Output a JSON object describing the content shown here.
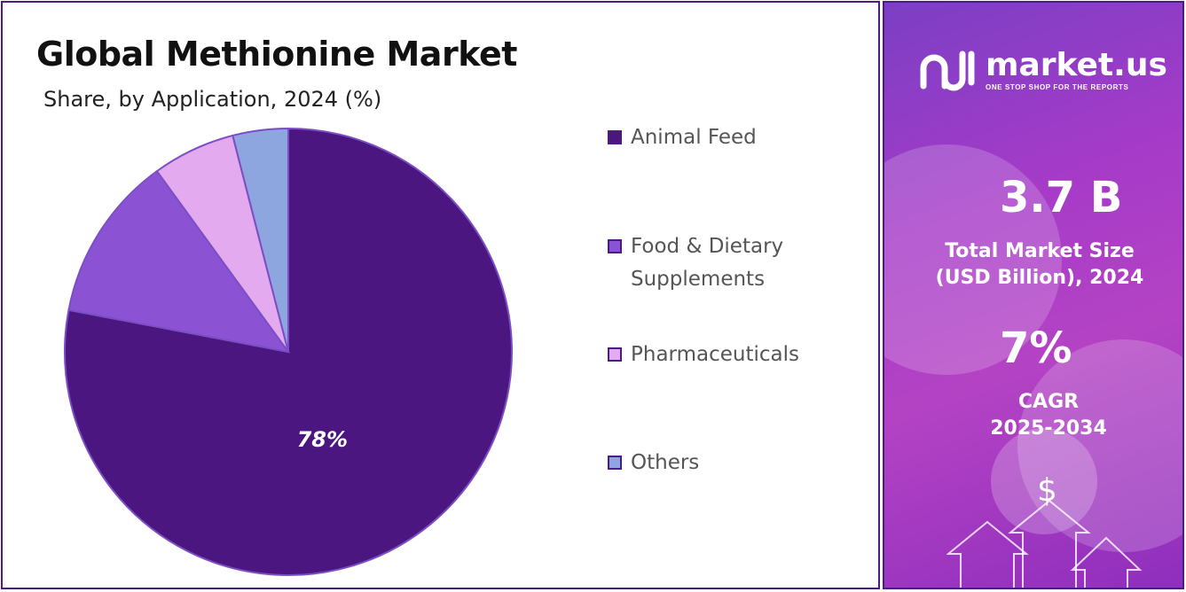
{
  "header": {
    "title": "Global Methionine Market",
    "subtitle": "Share, by Application, 2024 (%)"
  },
  "chart_data": {
    "type": "pie",
    "title": "Global Methionine Market",
    "subtitle": "Share, by Application, 2024 (%)",
    "categories": [
      "Animal Feed",
      "Food & Dietary Supplements",
      "Pharmaceuticals",
      "Others"
    ],
    "values": [
      78,
      12,
      6,
      4
    ],
    "colors": [
      "#4b167f",
      "#8c52d4",
      "#e4aaf0",
      "#8da6e0"
    ],
    "data_labels": [
      "78%",
      "",
      "",
      ""
    ],
    "legend_position": "right",
    "start_angle": "12 o'clock, clockwise"
  },
  "legend": {
    "items": [
      {
        "label": "Animal Feed",
        "color": "#4b167f"
      },
      {
        "label": "Food & Dietary\nSupplements",
        "color": "#8c52d4"
      },
      {
        "label": "Pharmaceuticals",
        "color": "#e4aaf0"
      },
      {
        "label": "Others",
        "color": "#8da6e0"
      }
    ]
  },
  "sidebar": {
    "brand": "market.us",
    "tagline": "ONE STOP SHOP FOR THE REPORTS",
    "market_size_value": "3.7 B",
    "market_size_label": "Total Market Size\n(USD Billion), 2024",
    "cagr_value": "7%",
    "cagr_label": "CAGR\n2025-2034",
    "dollar_symbol": "$"
  },
  "colors": {
    "accent": "#4a1a8a",
    "panel_gradient_start": "#7b3fc4",
    "panel_gradient_end": "#b443c4"
  }
}
